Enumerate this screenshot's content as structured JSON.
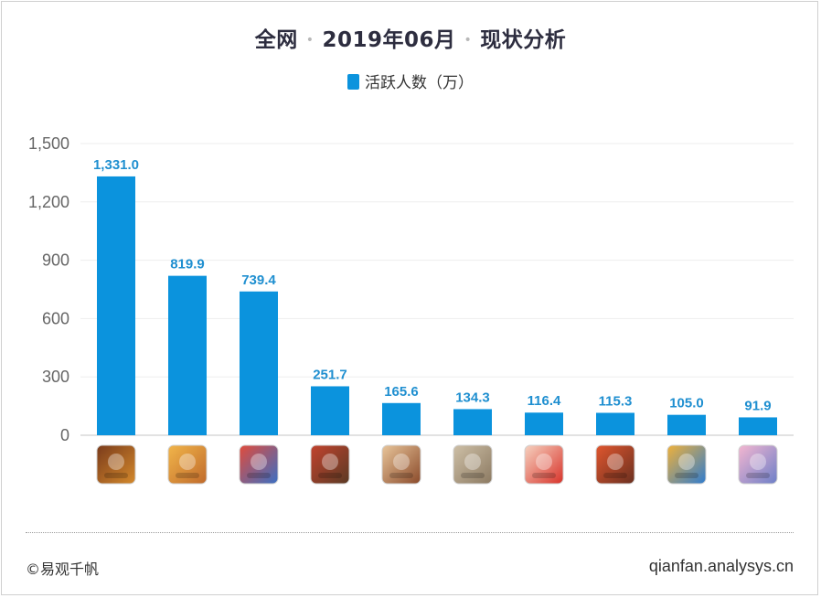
{
  "header": {
    "part1": "全网",
    "part2": "2019年06月",
    "part3": "现状分析",
    "separator": "•"
  },
  "footer": {
    "copyright": "©易观千帆",
    "site": "qianfan.analysys.cn"
  },
  "colors": {
    "bar": "#0b93dd",
    "label": "#1f8fd0",
    "grid": "#eeeeee"
  },
  "chart_data": {
    "type": "bar",
    "title": "",
    "xlabel": "",
    "ylabel": "",
    "ylim": [
      0,
      1500
    ],
    "yticks": [
      0,
      300,
      600,
      900,
      1200,
      1500
    ],
    "ytick_labels": [
      "0",
      "300",
      "600",
      "900",
      "1,200",
      "1,500"
    ],
    "grid": true,
    "legend_position": "top-center",
    "categories": [
      "app-icon-1",
      "app-icon-2",
      "app-icon-3",
      "app-icon-4",
      "app-icon-5",
      "app-icon-6",
      "app-icon-7",
      "app-icon-8",
      "app-icon-9",
      "app-icon-10"
    ],
    "series": [
      {
        "name": "活跃人数（万）",
        "values": [
          1331.0,
          819.9,
          739.4,
          251.7,
          165.6,
          134.3,
          116.4,
          115.3,
          105.0,
          91.9
        ],
        "value_labels": [
          "1,331.0",
          "819.9",
          "739.4",
          "251.7",
          "165.6",
          "134.3",
          "116.4",
          "115.3",
          "105.0",
          "91.9"
        ]
      }
    ],
    "icon_colors": [
      [
        "#d4892c",
        "#7a3b1b"
      ],
      [
        "#c06a2b",
        "#f1b54a"
      ],
      [
        "#3a6fc4",
        "#e24b3b"
      ],
      [
        "#5a3a24",
        "#c2432e"
      ],
      [
        "#8a4a2a",
        "#e8c59a"
      ],
      [
        "#8c7a62",
        "#cdbfa6"
      ],
      [
        "#d8332a",
        "#f6d2c0"
      ],
      [
        "#6a3020",
        "#e0562e"
      ],
      [
        "#2f7ccf",
        "#f0b13a"
      ],
      [
        "#6d7fc8",
        "#f4b6d0"
      ]
    ]
  }
}
